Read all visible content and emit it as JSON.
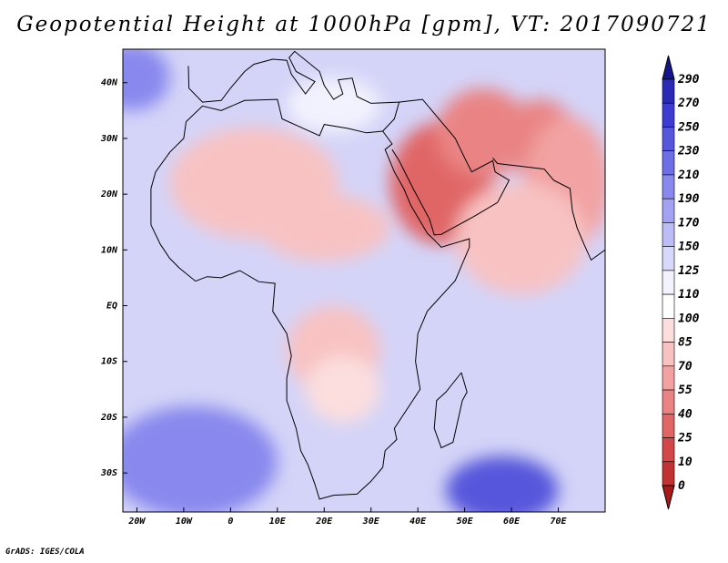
{
  "title": "Geopotential Height at 1000hPa [gpm], VT: 2017090721",
  "credit": "GrADS: IGES/COLA",
  "map": {
    "projection": "latlon",
    "lon_range": [
      -23,
      80
    ],
    "lat_range": [
      -37,
      46
    ],
    "lon_ticks": [
      {
        "value": -20,
        "label": "20W"
      },
      {
        "value": -10,
        "label": "10W"
      },
      {
        "value": 0,
        "label": "0"
      },
      {
        "value": 10,
        "label": "10E"
      },
      {
        "value": 20,
        "label": "20E"
      },
      {
        "value": 30,
        "label": "30E"
      },
      {
        "value": 40,
        "label": "40E"
      },
      {
        "value": 50,
        "label": "50E"
      },
      {
        "value": 60,
        "label": "60E"
      },
      {
        "value": 70,
        "label": "70E"
      }
    ],
    "lat_ticks": [
      {
        "value": 40,
        "label": "40N"
      },
      {
        "value": 30,
        "label": "30N"
      },
      {
        "value": 20,
        "label": "20N"
      },
      {
        "value": 10,
        "label": "10N"
      },
      {
        "value": 0,
        "label": "EQ"
      },
      {
        "value": -10,
        "label": "10S"
      },
      {
        "value": -20,
        "label": "20S"
      },
      {
        "value": -30,
        "label": "30S"
      }
    ],
    "field_features": [
      {
        "name": "arabian-low",
        "lon": 45,
        "lat": 22,
        "rx": 11,
        "ry": 11,
        "value": 30
      },
      {
        "name": "iran-low",
        "lon": 54,
        "lat": 31,
        "rx": 10,
        "ry": 8,
        "value": 40
      },
      {
        "name": "pakistan-low",
        "lon": 66,
        "lat": 30,
        "rx": 8,
        "ry": 7,
        "value": 45
      },
      {
        "name": "india-low",
        "lon": 72,
        "lat": 22,
        "rx": 9,
        "ry": 12,
        "value": 60
      },
      {
        "name": "sahara-low",
        "lon": 5,
        "lat": 22,
        "rx": 18,
        "ry": 10,
        "value": 78
      },
      {
        "name": "sahel-low",
        "lon": 20,
        "lat": 14,
        "rx": 14,
        "ry": 6,
        "value": 82
      },
      {
        "name": "central-africa-low",
        "lon": 22,
        "lat": -8,
        "rx": 10,
        "ry": 8,
        "value": 80
      },
      {
        "name": "southern-africa-low",
        "lon": 24,
        "lat": -15,
        "rx": 8,
        "ry": 6,
        "value": 85
      },
      {
        "name": "arabian-sea",
        "lon": 62,
        "lat": 12,
        "rx": 14,
        "ry": 10,
        "value": 70
      },
      {
        "name": "mediterranean-ridge",
        "lon": 22,
        "lat": 36,
        "rx": 10,
        "ry": 5,
        "value": 120
      },
      {
        "name": "south-atlantic-high",
        "lon": -8,
        "lat": -28,
        "rx": 18,
        "ry": 10,
        "value": 200
      },
      {
        "name": "south-indian-high",
        "lon": 58,
        "lat": -33,
        "rx": 12,
        "ry": 6,
        "value": 240
      },
      {
        "name": "north-atlantic-high",
        "lon": -21,
        "lat": 41,
        "rx": 8,
        "ry": 6,
        "value": 190
      }
    ]
  },
  "colorbar": {
    "levels": [
      "290",
      "270",
      "250",
      "230",
      "210",
      "190",
      "170",
      "150",
      "125",
      "110",
      "100",
      "85",
      "70",
      "55",
      "40",
      "25",
      "10",
      "0"
    ],
    "colors": [
      "#14148c",
      "#2a2ab4",
      "#3c3cd2",
      "#5656dc",
      "#6e6ee6",
      "#8888ee",
      "#a2a2f2",
      "#bcbcf6",
      "#d8d8fa",
      "#f2f2fe",
      "#ffffff",
      "#fcdede",
      "#f8c2c2",
      "#f2a2a2",
      "#ea8484",
      "#e06666",
      "#d24848",
      "#c23232",
      "#a81a1a"
    ]
  }
}
